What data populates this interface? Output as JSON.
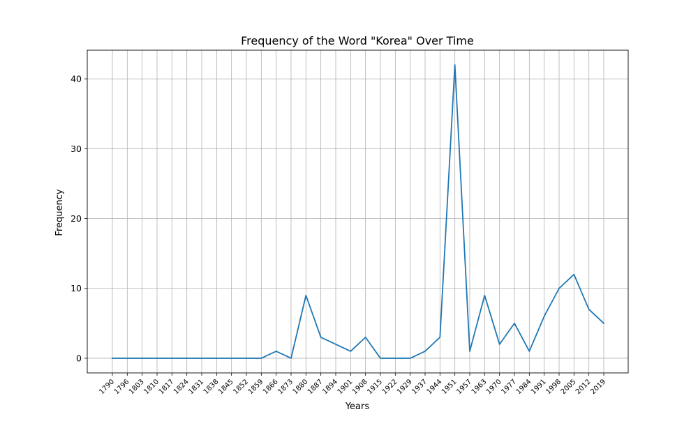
{
  "chart_data": {
    "type": "line",
    "title": "Frequency of the Word \"Korea\" Over Time",
    "xlabel": "Years",
    "ylabel": "Frequency",
    "categories": [
      "1790",
      "1796",
      "1803",
      "1810",
      "1817",
      "1824",
      "1831",
      "1838",
      "1845",
      "1852",
      "1859",
      "1866",
      "1873",
      "1880",
      "1887",
      "1894",
      "1901",
      "1908",
      "1915",
      "1922",
      "1929",
      "1937",
      "1944",
      "1951",
      "1957",
      "1963",
      "1970",
      "1977",
      "1984",
      "1991",
      "1998",
      "2005",
      "2012",
      "2019"
    ],
    "series": [
      {
        "values": [
          0,
          0,
          0,
          0,
          0,
          0,
          0,
          0,
          0,
          0,
          0,
          1,
          0,
          9,
          3,
          2,
          1,
          3,
          0,
          0,
          0,
          1,
          3,
          42,
          1,
          9,
          2,
          5,
          1,
          6,
          10,
          12,
          7,
          5
        ]
      }
    ],
    "ylim": [
      -2.1,
      44.1
    ],
    "yticks": [
      0,
      10,
      20,
      30,
      40
    ],
    "grid": true,
    "line_color": "#1f77b4"
  }
}
